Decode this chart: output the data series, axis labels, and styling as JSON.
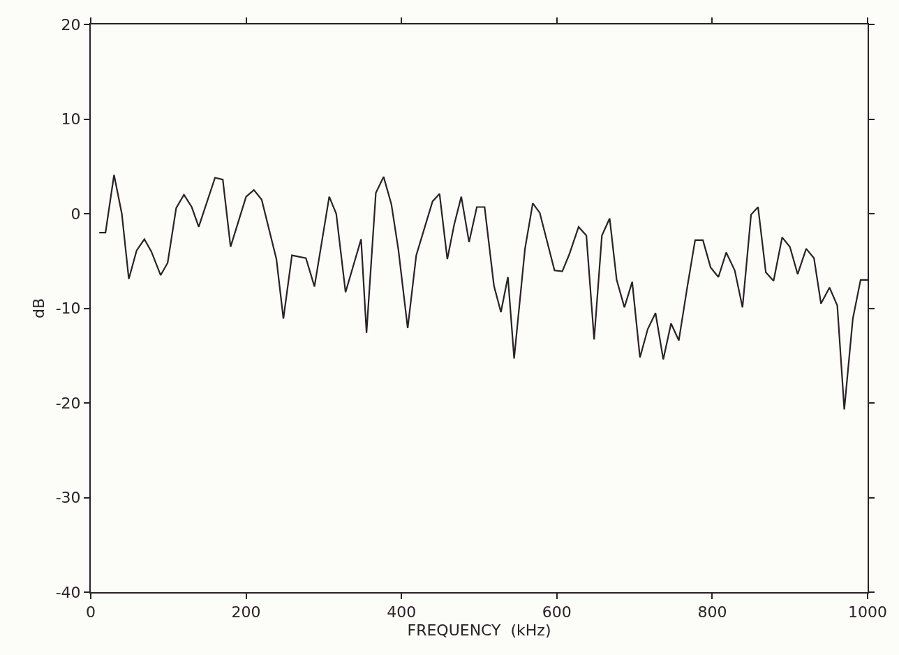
{
  "chart_data": {
    "type": "line",
    "xlabel": "FREQUENCY  (kHz)",
    "ylabel": "dB",
    "xlim": [
      0,
      1000
    ],
    "xticks": [
      0,
      200,
      400,
      600,
      800,
      1000
    ],
    "ylim": [
      -40,
      20
    ],
    "yticks": [
      -40,
      -30,
      -20,
      -10,
      0,
      10,
      20
    ],
    "grid": false,
    "marker": "none",
    "line_style": "solid",
    "series": [
      {
        "color": "#2a2226",
        "x": [
          11,
          19,
          30,
          40,
          49,
          59,
          69,
          78,
          90,
          99,
          110,
          120,
          130,
          139,
          160,
          170,
          180,
          200,
          210,
          220,
          239,
          248,
          259,
          277,
          288,
          307,
          316,
          328,
          348,
          355,
          367,
          377,
          387,
          396,
          408,
          419,
          440,
          449,
          459,
          468,
          477,
          487,
          497,
          507,
          519,
          528,
          537,
          545,
          559,
          569,
          578,
          597,
          607,
          616,
          628,
          638,
          648,
          658,
          668,
          677,
          687,
          697,
          707,
          717,
          727,
          737,
          747,
          757,
          768,
          778,
          788,
          798,
          808,
          818,
          829,
          839,
          850,
          859,
          869,
          879,
          890,
          900,
          910,
          921,
          931,
          940,
          951,
          961,
          970,
          981,
          991,
          1000
        ],
        "values": [
          -2.0,
          -2.0,
          4.1,
          0.0,
          -6.9,
          -3.9,
          -2.7,
          -4.0,
          -6.5,
          -5.2,
          0.6,
          2.0,
          0.7,
          -1.4,
          3.8,
          3.6,
          -3.5,
          1.8,
          2.5,
          1.5,
          -4.8,
          -11.1,
          -4.4,
          -4.7,
          -7.7,
          1.8,
          0.0,
          -8.3,
          -2.7,
          -12.6,
          2.2,
          3.9,
          1.0,
          -3.8,
          -12.1,
          -4.4,
          1.3,
          2.1,
          -4.8,
          -1.1,
          1.8,
          -3.0,
          0.7,
          0.7,
          -7.6,
          -10.4,
          -6.7,
          -15.3,
          -3.7,
          1.1,
          0.1,
          -6.0,
          -6.1,
          -4.3,
          -1.4,
          -2.3,
          -13.3,
          -2.3,
          -0.5,
          -7.0,
          -9.9,
          -7.2,
          -15.2,
          -12.2,
          -10.5,
          -15.4,
          -11.6,
          -13.4,
          -7.7,
          -2.8,
          -2.8,
          -5.7,
          -6.7,
          -4.1,
          -6.0,
          -9.9,
          -0.1,
          0.7,
          -6.2,
          -7.1,
          -2.5,
          -3.5,
          -6.4,
          -3.7,
          -4.7,
          -9.5,
          -7.8,
          -9.7,
          -20.7,
          -11.1,
          -7.0,
          -7.0
        ]
      }
    ]
  }
}
